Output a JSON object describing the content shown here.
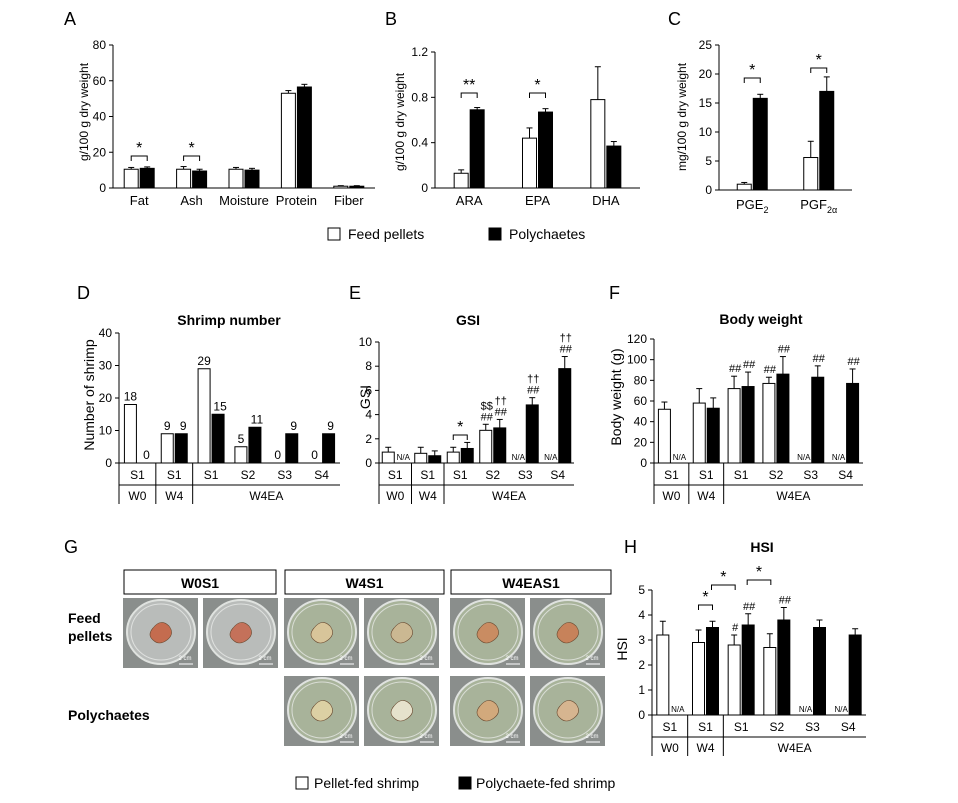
{
  "legend_top": {
    "white": "Feed pellets",
    "black": "Polychaetes"
  },
  "legend_bottom": {
    "white": "Pellet-fed shrimp",
    "black": "Polychaete-fed shrimp"
  },
  "colors": {
    "pellet_bar": "#ffffff",
    "polychaete_bar": "#000000",
    "stroke": "#000000",
    "dish_bg": "#8a8e8c",
    "dish_green": "#a8b39a"
  },
  "chart_data": [
    {
      "id": "A",
      "type": "bar",
      "letter": "A",
      "ylabel": "g/100 g dry weight",
      "ylim": [
        0,
        80
      ],
      "yticks": [
        "0",
        "20",
        "40",
        "60",
        "80"
      ],
      "categories": [
        "Fat",
        "Ash",
        "Moisture",
        "Protein",
        "Fiber"
      ],
      "series": [
        {
          "name": "Feed pellets",
          "values": [
            10.5,
            10.5,
            10.5,
            53,
            1
          ],
          "errors": [
            1,
            1.5,
            1,
            1.5,
            0.3
          ]
        },
        {
          "name": "Polychaetes",
          "values": [
            11,
            9.5,
            10,
            56.5,
            1
          ],
          "errors": [
            0.8,
            1,
            1,
            1.5,
            0.3
          ]
        }
      ],
      "annotations": [
        {
          "category": 0,
          "text": "*"
        },
        {
          "category": 1,
          "text": "*"
        }
      ]
    },
    {
      "id": "B",
      "type": "bar",
      "letter": "B",
      "ylabel": "g/100 g dry weight",
      "ylim": [
        0,
        1.2
      ],
      "yticks": [
        "0",
        "0.4",
        "0.8",
        "1.2"
      ],
      "categories": [
        "ARA",
        "EPA",
        "DHA"
      ],
      "series": [
        {
          "name": "Feed pellets",
          "values": [
            0.13,
            0.44,
            0.78
          ],
          "errors": [
            0.03,
            0.09,
            0.29
          ]
        },
        {
          "name": "Polychaetes",
          "values": [
            0.69,
            0.67,
            0.37
          ],
          "errors": [
            0.02,
            0.03,
            0.04
          ]
        }
      ],
      "annotations": [
        {
          "category": 0,
          "text": "**"
        },
        {
          "category": 1,
          "text": "*"
        }
      ]
    },
    {
      "id": "C",
      "type": "bar",
      "letter": "C",
      "ylabel": "mg/100 g dry weight",
      "ylim": [
        0,
        25
      ],
      "yticks": [
        "0",
        "5",
        "10",
        "15",
        "20",
        "25"
      ],
      "categories": [
        "PGE2",
        "PGF2α"
      ],
      "category_parts": [
        {
          "main": "PGE",
          "sub": "2"
        },
        {
          "main": "PGF",
          "sub": "2α"
        }
      ],
      "series": [
        {
          "name": "Feed pellets",
          "values": [
            1.0,
            5.6
          ],
          "errors": [
            0.3,
            2.8
          ]
        },
        {
          "name": "Polychaetes",
          "values": [
            15.8,
            17.0
          ],
          "errors": [
            0.7,
            2.5
          ]
        }
      ],
      "annotations": [
        {
          "category": 0,
          "text": "*"
        },
        {
          "category": 1,
          "text": "*"
        }
      ]
    },
    {
      "id": "D",
      "type": "bar",
      "letter": "D",
      "title": "Shrimp number",
      "ylabel": "Number of shrimp",
      "ylim": [
        0,
        40
      ],
      "yticks": [
        "0",
        "10",
        "20",
        "30",
        "40"
      ],
      "stages": [
        "S1",
        "S1",
        "S1",
        "S2",
        "S3",
        "S4"
      ],
      "periods": [
        "W0",
        "W4",
        "W4EA"
      ],
      "series": [
        {
          "name": "Pellet-fed shrimp",
          "values": [
            18,
            9,
            29,
            5,
            0,
            0
          ]
        },
        {
          "name": "Polychaete-fed shrimp",
          "values": [
            0,
            9,
            15,
            11,
            9,
            9
          ]
        }
      ],
      "value_labels": [
        [
          "18",
          "9",
          "29",
          "5",
          "0",
          "0"
        ],
        [
          "0",
          "9",
          "15",
          "11",
          "9",
          "9"
        ]
      ]
    },
    {
      "id": "E",
      "type": "bar",
      "letter": "E",
      "title": "GSI",
      "ylabel": "GSI",
      "ylim": [
        0,
        10
      ],
      "yticks": [
        "0",
        "2",
        "4",
        "6",
        "8",
        "10"
      ],
      "stages": [
        "S1",
        "S1",
        "S1",
        "S2",
        "S3",
        "S4"
      ],
      "periods": [
        "W0",
        "W4",
        "W4EA"
      ],
      "series": [
        {
          "name": "Pellet-fed shrimp",
          "values": [
            0.9,
            0.8,
            0.9,
            2.7,
            null,
            null
          ],
          "errors": [
            0.4,
            0.5,
            0.4,
            0.5,
            null,
            null
          ]
        },
        {
          "name": "Polychaete-fed shrimp",
          "values": [
            null,
            0.6,
            1.2,
            2.9,
            4.8,
            7.8
          ],
          "errors": [
            null,
            0.4,
            0.5,
            0.7,
            0.6,
            1.0
          ]
        }
      ],
      "na_label": "N/A",
      "marks": [
        [
          "",
          "",
          "",
          "$$\n##",
          "",
          ""
        ],
        [
          "",
          "",
          "",
          "††\n##",
          "††\n##",
          "††\n##"
        ]
      ],
      "brackets": [
        {
          "stage": 2,
          "text": "*"
        }
      ]
    },
    {
      "id": "F",
      "type": "bar",
      "letter": "F",
      "title": "Body weight",
      "ylabel": "Body weight (g)",
      "ylim": [
        0,
        120
      ],
      "yticks": [
        "0",
        "20",
        "40",
        "60",
        "80",
        "100",
        "120"
      ],
      "stages": [
        "S1",
        "S1",
        "S1",
        "S2",
        "S3",
        "S4"
      ],
      "periods": [
        "W0",
        "W4",
        "W4EA"
      ],
      "series": [
        {
          "name": "Pellet-fed shrimp",
          "values": [
            52,
            58,
            72,
            77,
            null,
            null
          ],
          "errors": [
            7,
            14,
            12,
            6,
            null,
            null
          ]
        },
        {
          "name": "Polychaete-fed shrimp",
          "values": [
            null,
            53,
            74,
            86,
            83,
            77
          ],
          "errors": [
            null,
            10,
            14,
            17,
            11,
            14
          ]
        }
      ],
      "na_label": "N/A",
      "marks": [
        [
          "",
          "",
          "##",
          "##",
          "",
          ""
        ],
        [
          "",
          "",
          "##",
          "##",
          "##",
          "##"
        ]
      ]
    },
    {
      "id": "H",
      "type": "bar",
      "letter": "H",
      "title": "HSI",
      "ylabel": "HSI",
      "ylim": [
        0,
        5
      ],
      "yticks": [
        "0",
        "1",
        "2",
        "3",
        "4",
        "5"
      ],
      "stages": [
        "S1",
        "S1",
        "S1",
        "S2",
        "S3",
        "S4"
      ],
      "periods": [
        "W0",
        "W4",
        "W4EA"
      ],
      "series": [
        {
          "name": "Pellet-fed shrimp",
          "values": [
            3.2,
            2.9,
            2.8,
            2.7,
            null,
            null
          ],
          "errors": [
            0.55,
            0.5,
            0.4,
            0.55,
            null,
            null
          ]
        },
        {
          "name": "Polychaete-fed shrimp",
          "values": [
            null,
            3.5,
            3.6,
            3.8,
            3.5,
            3.2
          ],
          "errors": [
            null,
            0.25,
            0.45,
            0.5,
            0.3,
            0.25
          ]
        }
      ],
      "na_label": "N/A",
      "marks": [
        [
          "",
          "",
          "#",
          "",
          "",
          ""
        ],
        [
          "",
          "",
          "##",
          "##",
          "",
          ""
        ]
      ],
      "brackets": [
        {
          "stage": 1,
          "text": "*"
        }
      ],
      "between_brackets": [
        {
          "from": 1,
          "to": 2,
          "text": "*"
        },
        {
          "from": 2,
          "to": 3,
          "text": "*"
        }
      ]
    }
  ],
  "panel_g": {
    "letter": "G",
    "groups": [
      "W0S1",
      "W4S1",
      "W4EAS1"
    ],
    "row_labels": [
      "Feed\npellets",
      "Polychaetes"
    ],
    "scale": "2 cm"
  }
}
